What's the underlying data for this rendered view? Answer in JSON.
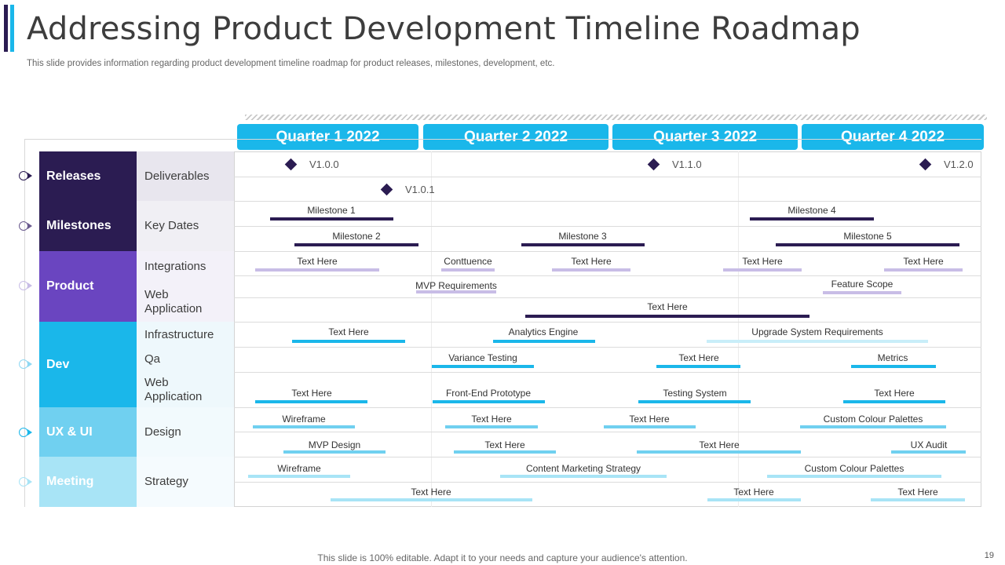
{
  "header": {
    "title": "Addressing Product Development Timeline Roadmap",
    "subtitle": "This slide provides information regarding product development timeline roadmap for product releases, milestones, development, etc."
  },
  "quarters": [
    "Quarter 1 2022",
    "Quarter 2 2022",
    "Quarter 3 2022",
    "Quarter 4 2022"
  ],
  "categories": [
    {
      "label": "Releases",
      "color": "#2b1c52"
    },
    {
      "label": "Milestones",
      "color": "#2b1c52"
    },
    {
      "label": "Product",
      "color": "#6a45c0"
    },
    {
      "label": "Dev",
      "color": "#1ab7ea"
    },
    {
      "label": "UX & UI",
      "color": "#70d0f0"
    },
    {
      "label": "Meeting",
      "color": "#a8e4f6"
    }
  ],
  "subcategories": [
    "Deliverables",
    "Key Dates",
    "Integrations",
    "Web Application",
    "Infrastructure",
    "Qa",
    "Web Application",
    "Design",
    "Strategy"
  ],
  "releases": [
    "V1.0.0",
    "V1.1.0",
    "V1.2.0",
    "V1.0.1"
  ],
  "tasks": [
    "Milestone 1",
    "Milestone 4",
    "Milestone 2",
    "Milestone 3",
    "Milestone 5",
    "Text Here",
    "Conttuence",
    "Text Here",
    "Text Here",
    "Text Here",
    "MVP Requirements",
    "Feature Scope",
    "Text Here",
    "Text Here",
    "Analytics Engine",
    "Upgrade System Requirements",
    "Variance Testing",
    "Text Here",
    "Metrics",
    "Text Here",
    "Front-End Prototype",
    "Testing System",
    "Text Here",
    "Wireframe",
    "Text Here",
    "Text Here",
    "Custom Colour Palettes",
    "MVP Design",
    "Text Here",
    "Text Here",
    "UX Audit",
    "Wireframe",
    "Content Marketing Strategy",
    "Custom Colour Palettes",
    "Text Here",
    "Text Here",
    "Text Here"
  ],
  "colors": {
    "dark": "#2b1c52",
    "lavender": "#c8bde6",
    "blue": "#1ab7ea",
    "light_blue": "#70d0f0",
    "pale_blue": "#a8e4f6",
    "very_pale_blue": "#c9eef9"
  },
  "footer": {
    "note": "This slide is 100% editable. Adapt it to your needs and capture your audience's attention.",
    "page_number": "19"
  }
}
